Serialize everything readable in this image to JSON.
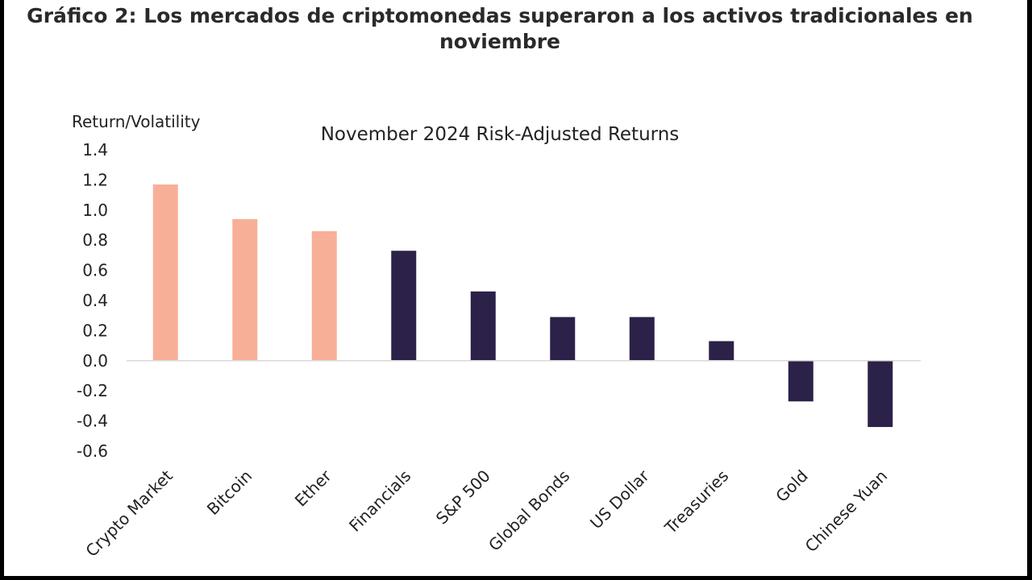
{
  "heading": "Gráfico 2: Los mercados de criptomonedas superaron a los activos tradicionales en noviembre",
  "chart_data": {
    "type": "bar",
    "title": "November 2024 Risk-Adjusted Returns",
    "ylabel": "Return/Volatility",
    "xlabel": "",
    "ylim": [
      -0.6,
      1.4
    ],
    "yticks": [
      "1.4",
      "1.2",
      "1.0",
      "0.8",
      "0.6",
      "0.4",
      "0.2",
      "0.0",
      "-0.2",
      "-0.4",
      "-0.6"
    ],
    "grid": false,
    "categories": [
      "Crypto Market",
      "Bitcoin",
      "Ether",
      "Financials",
      "S&P 500",
      "Global Bonds",
      "US Dollar",
      "Treasuries",
      "Gold",
      "Chinese Yuan"
    ],
    "values": [
      1.17,
      0.94,
      0.86,
      0.73,
      0.46,
      0.29,
      0.29,
      0.13,
      -0.27,
      -0.44
    ],
    "colors": [
      "#F8AF97",
      "#F8AF97",
      "#F8AF97",
      "#2C2148",
      "#2C2148",
      "#2C2148",
      "#2C2148",
      "#2C2148",
      "#2C2148",
      "#2C2148"
    ]
  }
}
